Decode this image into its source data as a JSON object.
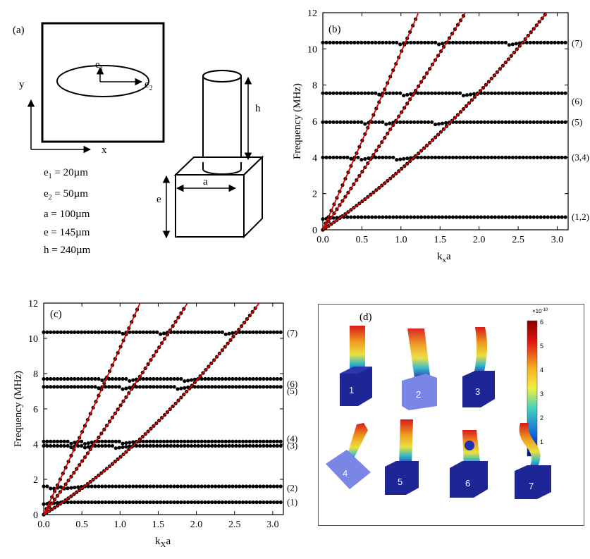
{
  "panel_a": {
    "label": "(a)",
    "axis_x": "x",
    "axis_y": "y",
    "e1_label": "e",
    "e1_sub": "1",
    "e2_label": "e",
    "e2_sub": "2",
    "dim_h": "h",
    "dim_e": "e",
    "dim_a": "a",
    "params": [
      {
        "name": "e",
        "sub": "1",
        "value": " = 20µm"
      },
      {
        "name": "e",
        "sub": "2",
        "value": " = 50µm"
      },
      {
        "name": "a",
        "sub": "",
        "value": " = 100µm"
      },
      {
        "name": "e",
        "sub": "",
        "value": " = 145µm"
      },
      {
        "name": "h",
        "sub": "",
        "value": " = 240µm"
      }
    ]
  },
  "chart_data": [
    {
      "panel": "(b)",
      "type": "scatter",
      "xlabel_main": "k",
      "xlabel_sub": "x",
      "xlabel_tail": "a",
      "ylabel": "Frequency (MHz)",
      "xlim": [
        0,
        3.14
      ],
      "ylim": [
        0,
        12
      ],
      "xticks": [
        "0.0",
        "0.5",
        "1.0",
        "1.5",
        "2.0",
        "2.5",
        "3.0"
      ],
      "yticks": [
        "0",
        "2",
        "4",
        "6",
        "8",
        "10",
        "12"
      ],
      "flat_bands": [
        0.7,
        4.0,
        5.95,
        7.55,
        10.35
      ],
      "mode_labels": [
        {
          "text": "(1,2)",
          "y": 0.7
        },
        {
          "text": "(3,4)",
          "y": 4.0
        },
        {
          "text": "(5)",
          "y": 5.95
        },
        {
          "text": "(6)",
          "y": 7.1
        },
        {
          "text": "(7)",
          "y": 10.3
        }
      ],
      "sound_lines": [
        {
          "name": "line1",
          "slope": 9.8,
          "curv": 0
        },
        {
          "name": "line2",
          "slope": 6.3,
          "curv": 0.15
        },
        {
          "name": "line3",
          "slope": 2.9,
          "curv": 0.45
        }
      ],
      "colors": {
        "points": "#000000",
        "lines": "#e00000"
      }
    },
    {
      "panel": "(c)",
      "type": "scatter",
      "xlabel_main": "k",
      "xlabel_sub": "X",
      "xlabel_tail": "a",
      "ylabel": "Frequency (MHz)",
      "xlim": [
        0,
        3.14
      ],
      "ylim": [
        0,
        12
      ],
      "xticks": [
        "0.0",
        "0.5",
        "1.0",
        "1.5",
        "2.0",
        "2.5",
        "3.0"
      ],
      "yticks": [
        "0",
        "2",
        "4",
        "6",
        "8",
        "10",
        "12"
      ],
      "flat_bands": [
        0.7,
        1.6,
        3.9,
        4.15,
        7.25,
        7.7,
        10.35
      ],
      "mode_labels": [
        {
          "text": "(1)",
          "y": 0.7
        },
        {
          "text": "(2)",
          "y": 1.5
        },
        {
          "text": "(3)",
          "y": 3.9
        },
        {
          "text": "(4)",
          "y": 4.3
        },
        {
          "text": "(5)",
          "y": 7.0
        },
        {
          "text": "(6)",
          "y": 7.4
        },
        {
          "text": "(7)",
          "y": 10.3
        }
      ],
      "sound_lines": [
        {
          "name": "line1",
          "slope": 9.2,
          "curv": 0.25
        },
        {
          "name": "line2",
          "slope": 5.9,
          "curv": 0.25
        },
        {
          "name": "line3",
          "slope": 2.7,
          "curv": 0.55
        }
      ],
      "colors": {
        "points": "#000000",
        "lines": "#e00000"
      }
    }
  ],
  "panel_d": {
    "label": "(d)",
    "colorbar_exp": "×10",
    "colorbar_exp_power": "-10",
    "colorbar_ticks": [
      "6",
      "5",
      "4",
      "3",
      "2",
      "1"
    ],
    "modes": [
      "1",
      "2",
      "3",
      "4",
      "5",
      "6",
      "7"
    ],
    "colors": {
      "base": "#1a1f8a",
      "base_light": "#7a86e6",
      "hot": "#d81a1a",
      "mid": "#f0d020",
      "cool": "#20b0c0"
    }
  }
}
